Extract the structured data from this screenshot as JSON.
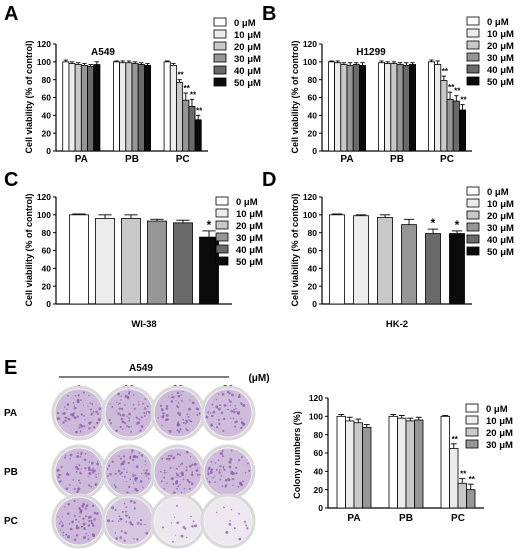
{
  "legend_labels_six": [
    "0 μM",
    "10 μM",
    "20 μM",
    "30 μM",
    "40 μM",
    "50 μM"
  ],
  "legend_labels_four": [
    "0 μM",
    "10 μM",
    "20 μM",
    "30 μM"
  ],
  "colors": {
    "fills": [
      "#ffffff",
      "#ececec",
      "#c8c8c8",
      "#969696",
      "#6a6a6a",
      "#0a0a0a"
    ],
    "plate_rim": "#d9d9d9",
    "plate_dense": "#8a5aa8",
    "plate_light": "#e4dde9"
  },
  "panel_e": {
    "letter": "E",
    "cell_line": "A549",
    "doses": [
      "0",
      "10",
      "20",
      "30"
    ],
    "unit": "(μM)",
    "rows": [
      "PA",
      "PB",
      "PC"
    ],
    "colony_density": [
      [
        1.0,
        1.0,
        1.0,
        0.95
      ],
      [
        1.0,
        1.0,
        1.0,
        0.95
      ],
      [
        1.0,
        0.6,
        0.25,
        0.2
      ]
    ]
  },
  "chart_data": [
    {
      "panel": "A",
      "type": "bar",
      "title": "A549",
      "ylabel": "Cell viability (% of control)",
      "xlabel": "",
      "ylim": [
        0,
        120
      ],
      "yticks": [
        0,
        20,
        40,
        60,
        80,
        100,
        120
      ],
      "categories": [
        "PA",
        "PB",
        "PC"
      ],
      "series": [
        {
          "name": "0 μM",
          "values": [
            100,
            100,
            100
          ],
          "errors": [
            2,
            1,
            1
          ]
        },
        {
          "name": "10 μM",
          "values": [
            98,
            99,
            96
          ],
          "errors": [
            2,
            2,
            2
          ]
        },
        {
          "name": "20 μM",
          "values": [
            97,
            99,
            77
          ],
          "errors": [
            2,
            2,
            3
          ]
        },
        {
          "name": "30 μM",
          "values": [
            96,
            98,
            57
          ],
          "errors": [
            2,
            2,
            8
          ]
        },
        {
          "name": "40 μM",
          "values": [
            95,
            97,
            50
          ],
          "errors": [
            2,
            2,
            8
          ]
        },
        {
          "name": "50 μM",
          "values": [
            97,
            96,
            35
          ],
          "errors": [
            3,
            2,
            5
          ]
        }
      ],
      "annotations": [
        {
          "category": "PC",
          "series": 2,
          "text": "**"
        },
        {
          "category": "PC",
          "series": 3,
          "text": "**"
        },
        {
          "category": "PC",
          "series": 4,
          "text": "**"
        },
        {
          "category": "PC",
          "series": 5,
          "text": "**"
        }
      ],
      "legend": "right"
    },
    {
      "panel": "B",
      "type": "bar",
      "title": "H1299",
      "ylabel": "Cell viability (% of control)",
      "xlabel": "",
      "ylim": [
        0,
        120
      ],
      "yticks": [
        0,
        20,
        40,
        60,
        80,
        100,
        120
      ],
      "categories": [
        "PA",
        "PB",
        "PC"
      ],
      "series": [
        {
          "name": "0 μM",
          "values": [
            100,
            99,
            100
          ],
          "errors": [
            1,
            2,
            2
          ]
        },
        {
          "name": "10 μM",
          "values": [
            99,
            98,
            97
          ],
          "errors": [
            2,
            2,
            4
          ]
        },
        {
          "name": "20 μM",
          "values": [
            97,
            98,
            79
          ],
          "errors": [
            2,
            2,
            5
          ]
        },
        {
          "name": "30 μM",
          "values": [
            96,
            97,
            58
          ],
          "errors": [
            3,
            2,
            8
          ]
        },
        {
          "name": "40 μM",
          "values": [
            97,
            96,
            56
          ],
          "errors": [
            2,
            3,
            6
          ]
        },
        {
          "name": "50 μM",
          "values": [
            96,
            97,
            46
          ],
          "errors": [
            3,
            2,
            6
          ]
        }
      ],
      "annotations": [
        {
          "category": "PC",
          "series": 2,
          "text": "**"
        },
        {
          "category": "PC",
          "series": 3,
          "text": "**"
        },
        {
          "category": "PC",
          "series": 4,
          "text": "**"
        },
        {
          "category": "PC",
          "series": 5,
          "text": "**"
        }
      ],
      "legend": "right"
    },
    {
      "panel": "C",
      "type": "bar",
      "title": "",
      "ylabel": "Cell viability (% of control)",
      "xlabel": "WI-38",
      "ylim": [
        0,
        120
      ],
      "yticks": [
        0,
        20,
        40,
        60,
        80,
        100,
        120
      ],
      "categories": [
        "WI-38"
      ],
      "series": [
        {
          "name": "0 μM",
          "values": [
            100
          ],
          "errors": [
            1
          ]
        },
        {
          "name": "10 μM",
          "values": [
            96
          ],
          "errors": [
            4
          ]
        },
        {
          "name": "20 μM",
          "values": [
            96
          ],
          "errors": [
            4
          ]
        },
        {
          "name": "30 μM",
          "values": [
            93
          ],
          "errors": [
            2
          ]
        },
        {
          "name": "40 μM",
          "values": [
            91
          ],
          "errors": [
            3
          ]
        },
        {
          "name": "50 μM",
          "values": [
            75
          ],
          "errors": [
            7
          ]
        }
      ],
      "annotations": [
        {
          "category": "WI-38",
          "series": 5,
          "text": "*"
        }
      ],
      "legend": "right"
    },
    {
      "panel": "D",
      "type": "bar",
      "title": "",
      "ylabel": "Cell viability (% of control)",
      "xlabel": "HK-2",
      "ylim": [
        0,
        120
      ],
      "yticks": [
        0,
        20,
        40,
        60,
        80,
        100,
        120
      ],
      "categories": [
        "HK-2"
      ],
      "series": [
        {
          "name": "0 μM",
          "values": [
            100
          ],
          "errors": [
            1
          ]
        },
        {
          "name": "10 μM",
          "values": [
            99
          ],
          "errors": [
            1
          ]
        },
        {
          "name": "20 μM",
          "values": [
            97
          ],
          "errors": [
            3
          ]
        },
        {
          "name": "30 μM",
          "values": [
            89
          ],
          "errors": [
            6
          ]
        },
        {
          "name": "40 μM",
          "values": [
            79
          ],
          "errors": [
            5
          ]
        },
        {
          "name": "50 μM",
          "values": [
            79
          ],
          "errors": [
            3
          ]
        }
      ],
      "annotations": [
        {
          "category": "HK-2",
          "series": 4,
          "text": "*"
        },
        {
          "category": "HK-2",
          "series": 5,
          "text": "*"
        }
      ],
      "legend": "right"
    },
    {
      "panel": "E",
      "type": "bar",
      "title": "",
      "ylabel": "Colony numbers (%)",
      "xlabel": "",
      "ylim": [
        0,
        120
      ],
      "yticks": [
        0,
        20,
        40,
        60,
        80,
        100,
        120
      ],
      "categories": [
        "PA",
        "PB",
        "PC"
      ],
      "series": [
        {
          "name": "0 μM",
          "values": [
            100,
            100,
            100
          ],
          "errors": [
            2,
            2,
            1
          ]
        },
        {
          "name": "10 μM",
          "values": [
            95,
            98,
            65
          ],
          "errors": [
            4,
            3,
            5
          ]
        },
        {
          "name": "20 μM",
          "values": [
            93,
            95,
            27
          ],
          "errors": [
            4,
            3,
            5
          ]
        },
        {
          "name": "30 μM",
          "values": [
            88,
            96,
            20
          ],
          "errors": [
            3,
            3,
            6
          ]
        }
      ],
      "annotations": [
        {
          "category": "PC",
          "series": 1,
          "text": "**"
        },
        {
          "category": "PC",
          "series": 2,
          "text": "**"
        },
        {
          "category": "PC",
          "series": 3,
          "text": "**"
        }
      ],
      "legend": "right"
    }
  ]
}
